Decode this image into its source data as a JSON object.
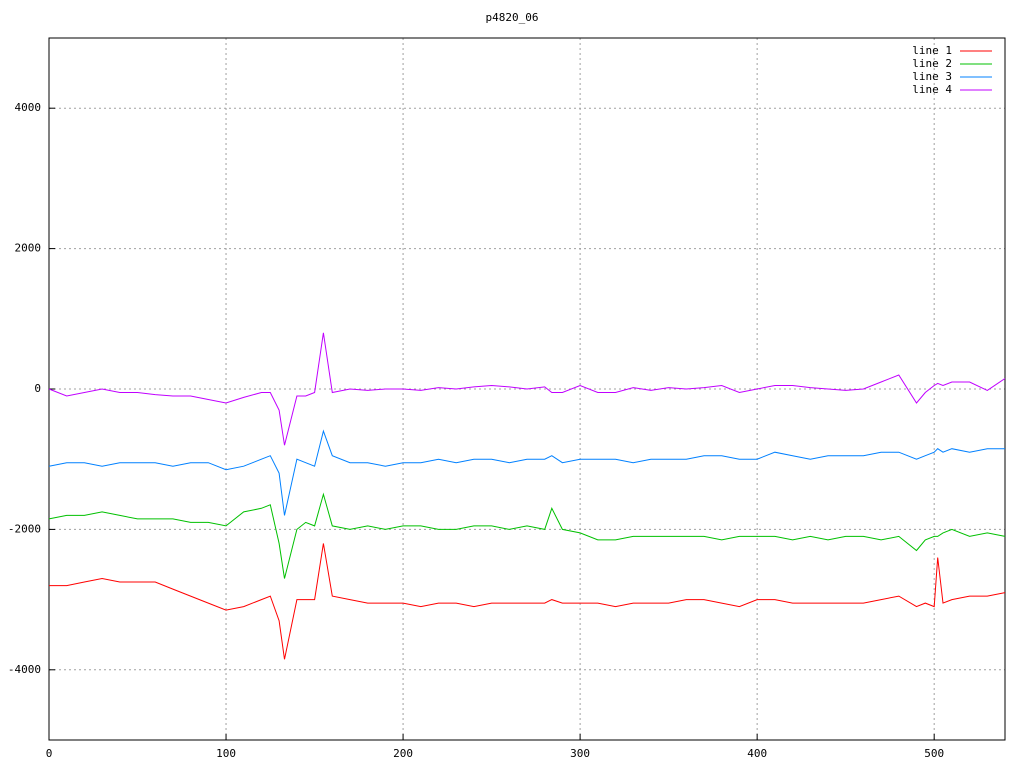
{
  "chart_data": {
    "type": "line",
    "title": "p4820_06",
    "x": [
      0,
      10,
      20,
      30,
      40,
      50,
      60,
      70,
      80,
      90,
      100,
      110,
      120,
      125,
      130,
      133,
      140,
      145,
      150,
      155,
      160,
      170,
      180,
      190,
      200,
      210,
      220,
      230,
      240,
      250,
      260,
      270,
      280,
      284,
      290,
      300,
      310,
      320,
      330,
      340,
      350,
      360,
      370,
      380,
      390,
      400,
      410,
      420,
      430,
      440,
      450,
      460,
      470,
      480,
      490,
      495,
      500,
      502,
      505,
      510,
      520,
      530,
      540
    ],
    "series": [
      {
        "name": "line 1",
        "color": "#ff0000",
        "values": [
          -2800,
          -2800,
          -2750,
          -2700,
          -2750,
          -2750,
          -2750,
          -2850,
          -2950,
          -3050,
          -3150,
          -3100,
          -3000,
          -2950,
          -3300,
          -3850,
          -3000,
          -3000,
          -3000,
          -2200,
          -2950,
          -3000,
          -3050,
          -3050,
          -3050,
          -3100,
          -3050,
          -3050,
          -3100,
          -3050,
          -3050,
          -3050,
          -3050,
          -3000,
          -3050,
          -3050,
          -3050,
          -3100,
          -3050,
          -3050,
          -3050,
          -3000,
          -3000,
          -3050,
          -3100,
          -3000,
          -3000,
          -3050,
          -3050,
          -3050,
          -3050,
          -3050,
          -3000,
          -2950,
          -3100,
          -3050,
          -3100,
          -2400,
          -3050,
          -3000,
          -2950,
          -2950,
          -2900
        ]
      },
      {
        "name": "line 2",
        "color": "#00c000",
        "values": [
          -1850,
          -1800,
          -1800,
          -1750,
          -1800,
          -1850,
          -1850,
          -1850,
          -1900,
          -1900,
          -1950,
          -1750,
          -1700,
          -1650,
          -2200,
          -2700,
          -2000,
          -1900,
          -1950,
          -1500,
          -1950,
          -2000,
          -1950,
          -2000,
          -1950,
          -1950,
          -2000,
          -2000,
          -1950,
          -1950,
          -2000,
          -1950,
          -2000,
          -1700,
          -2000,
          -2050,
          -2150,
          -2150,
          -2100,
          -2100,
          -2100,
          -2100,
          -2100,
          -2150,
          -2100,
          -2100,
          -2100,
          -2150,
          -2100,
          -2150,
          -2100,
          -2100,
          -2150,
          -2100,
          -2300,
          -2150,
          -2100,
          -2100,
          -2050,
          -2000,
          -2100,
          -2050,
          -2100
        ]
      },
      {
        "name": "line 3",
        "color": "#0080ff",
        "values": [
          -1100,
          -1050,
          -1050,
          -1100,
          -1050,
          -1050,
          -1050,
          -1100,
          -1050,
          -1050,
          -1150,
          -1100,
          -1000,
          -950,
          -1200,
          -1800,
          -1000,
          -1050,
          -1100,
          -600,
          -950,
          -1050,
          -1050,
          -1100,
          -1050,
          -1050,
          -1000,
          -1050,
          -1000,
          -1000,
          -1050,
          -1000,
          -1000,
          -950,
          -1050,
          -1000,
          -1000,
          -1000,
          -1050,
          -1000,
          -1000,
          -1000,
          -950,
          -950,
          -1000,
          -1000,
          -900,
          -950,
          -1000,
          -950,
          -950,
          -950,
          -900,
          -900,
          -1000,
          -950,
          -900,
          -850,
          -900,
          -850,
          -900,
          -850,
          -850
        ]
      },
      {
        "name": "line 4",
        "color": "#c000ff",
        "values": [
          0,
          -100,
          -50,
          0,
          -50,
          -50,
          -80,
          -100,
          -100,
          -150,
          -200,
          -120,
          -50,
          -50,
          -300,
          -800,
          -100,
          -100,
          -50,
          800,
          -50,
          0,
          -20,
          0,
          0,
          -20,
          20,
          0,
          30,
          50,
          30,
          0,
          30,
          -50,
          -50,
          50,
          -50,
          -50,
          20,
          -20,
          20,
          0,
          20,
          50,
          -50,
          0,
          50,
          50,
          20,
          0,
          -20,
          0,
          100,
          200,
          -200,
          -50,
          50,
          80,
          50,
          100,
          100,
          -20,
          150
        ]
      }
    ],
    "xlim": [
      0,
      540
    ],
    "xticks": [
      0,
      100,
      200,
      300,
      400,
      500
    ],
    "ylim": [
      -5000,
      5000
    ],
    "yticks": [
      -4000,
      -2000,
      0,
      2000,
      4000
    ],
    "grid": true,
    "legend": "top-right"
  }
}
